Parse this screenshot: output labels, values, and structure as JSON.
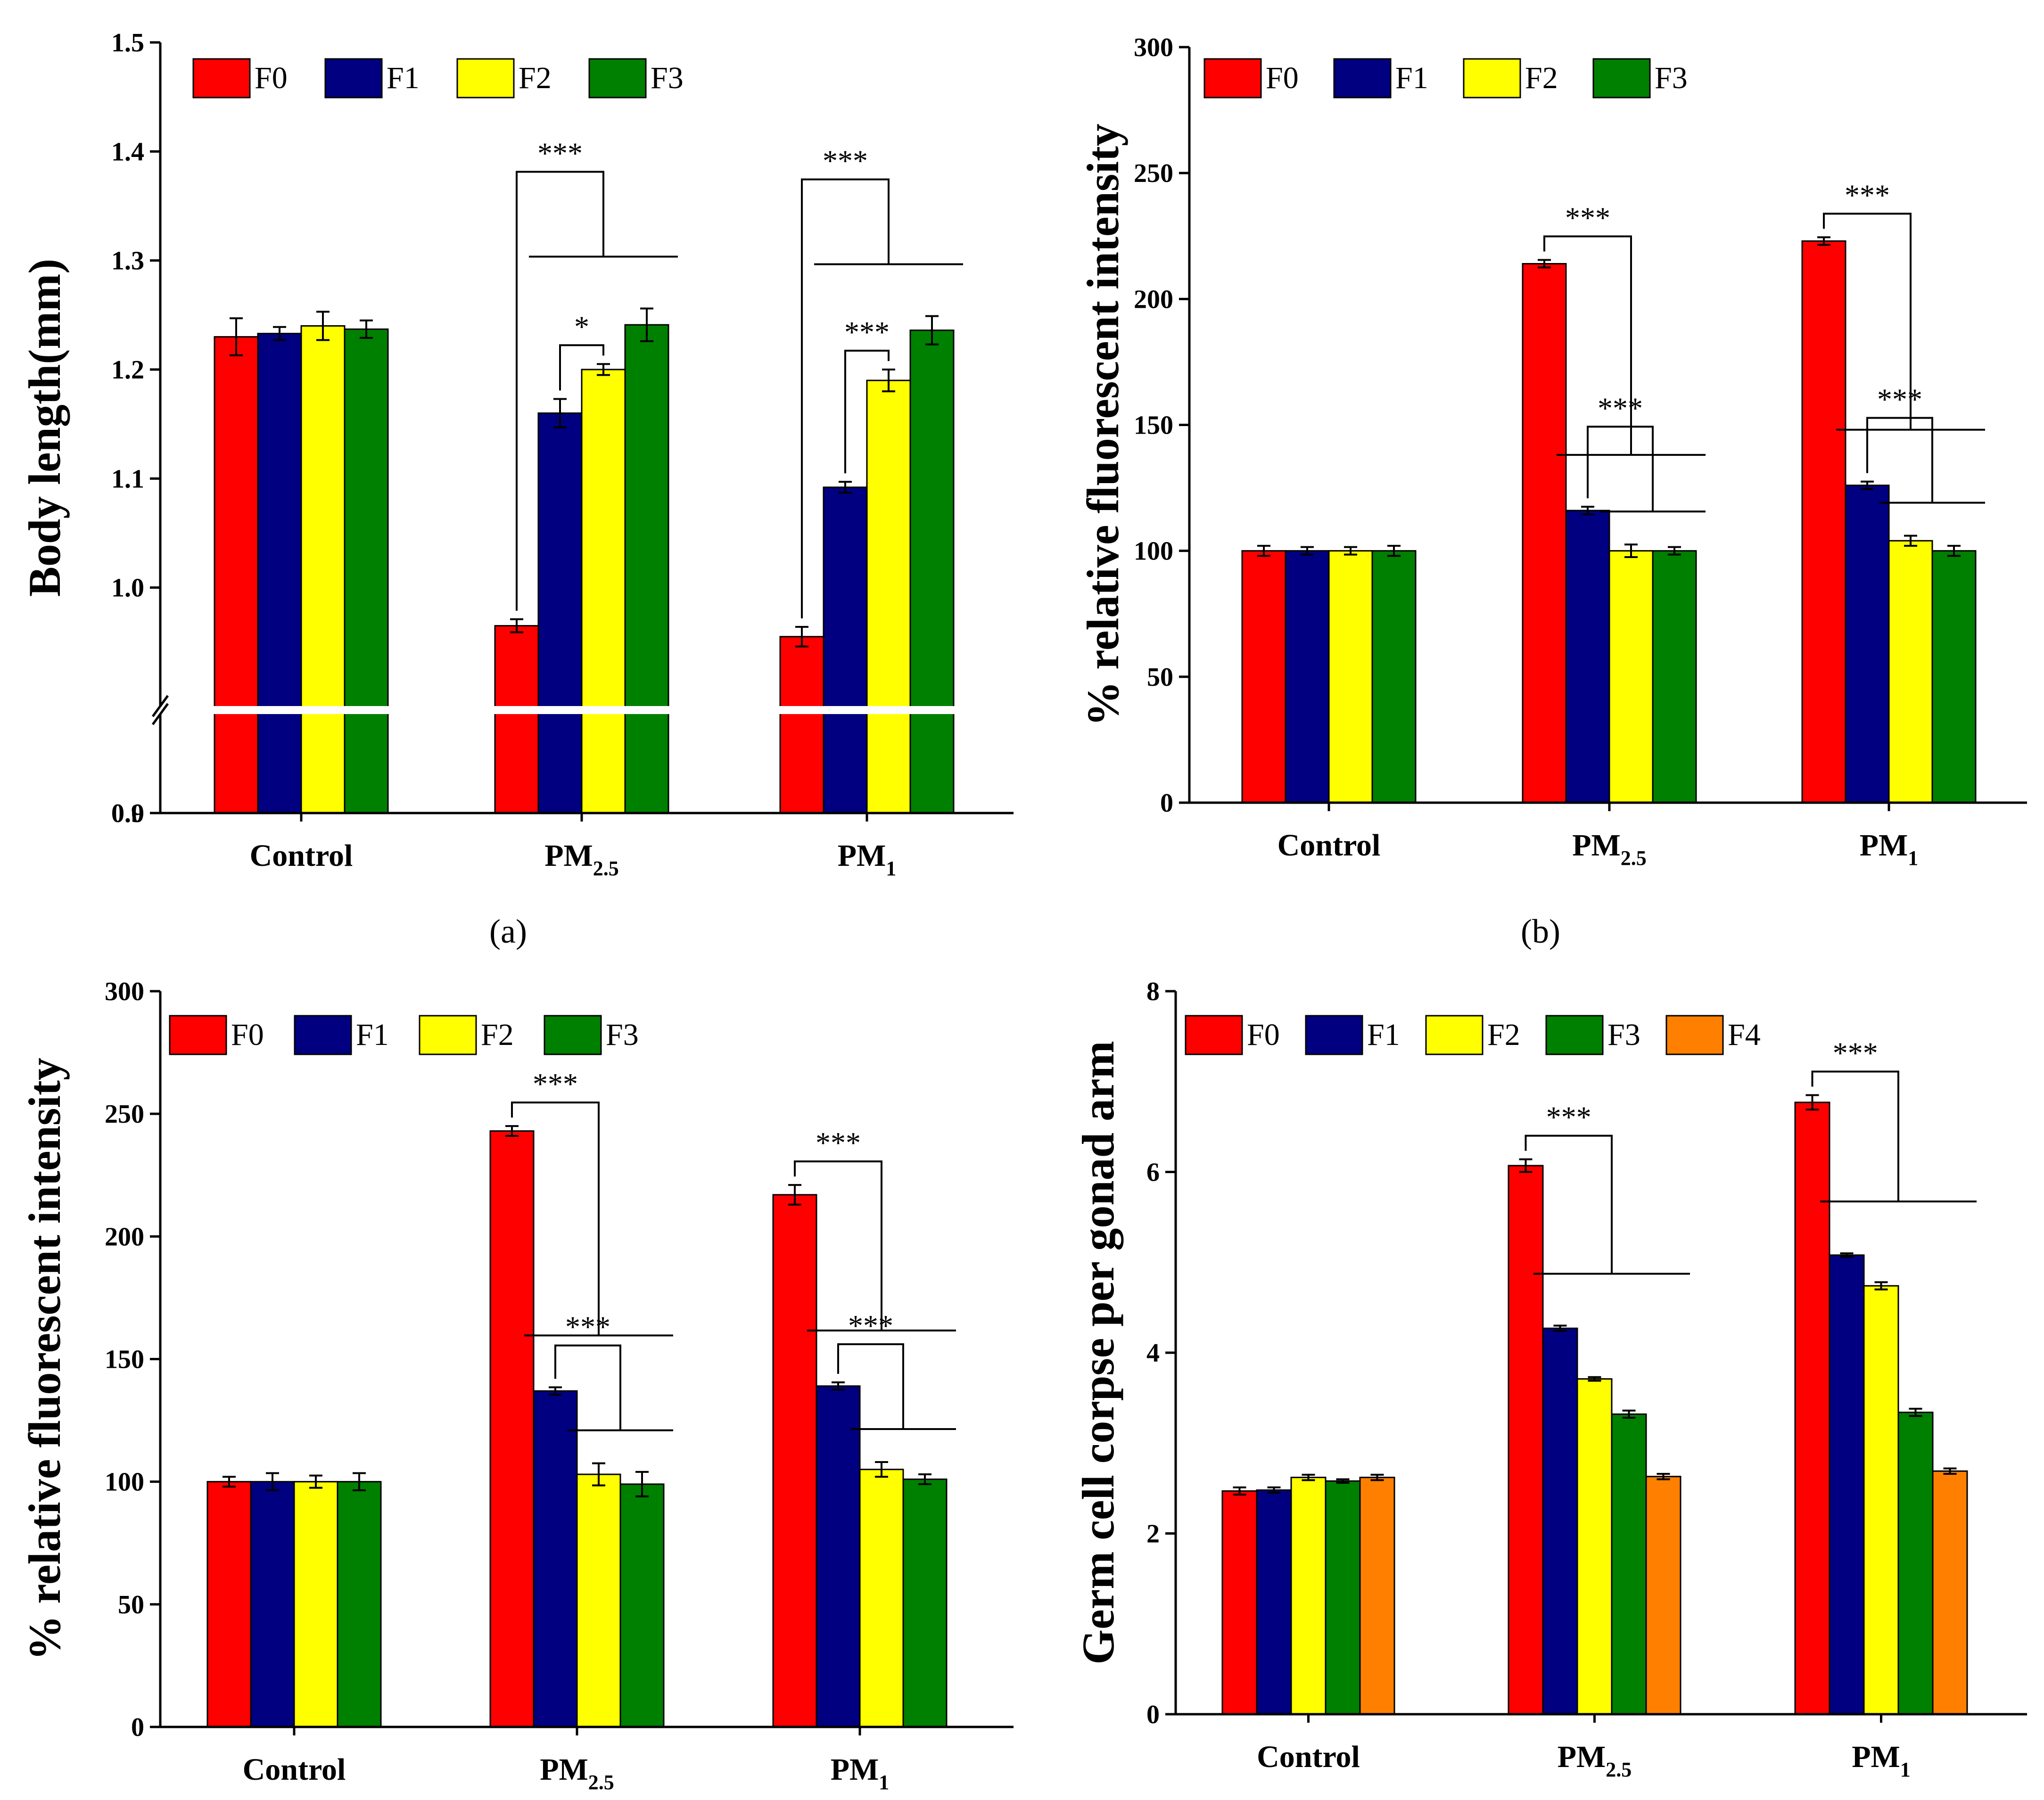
{
  "figure": {
    "panel_labels": [
      "(a)",
      "(b)"
    ]
  },
  "colors": {
    "F0": "#ff0000",
    "F1": "#000080",
    "F2": "#ffff00",
    "F3": "#008000",
    "F4": "#ff8000"
  },
  "chart_data": [
    {
      "id": "a",
      "type": "bar",
      "ylabel": "Body length(mm)",
      "xlabel": "",
      "categories": [
        {
          "base": "Control",
          "sub": ""
        },
        {
          "base": "PM",
          "sub": "2.5"
        },
        {
          "base": "PM",
          "sub": "1"
        }
      ],
      "series": [
        {
          "name": "F0",
          "values": [
            1.23,
            0.965,
            0.955
          ],
          "errors": [
            0.017,
            0.006,
            0.009
          ]
        },
        {
          "name": "F1",
          "values": [
            1.233,
            1.16,
            1.092
          ],
          "errors": [
            0.006,
            0.013,
            0.005
          ]
        },
        {
          "name": "F2",
          "values": [
            1.24,
            1.2,
            1.19
          ],
          "errors": [
            0.013,
            0.005,
            0.01
          ]
        },
        {
          "name": "F3",
          "values": [
            1.237,
            1.241,
            1.236
          ],
          "errors": [
            0.008,
            0.015,
            0.013
          ]
        }
      ],
      "y_axis_break": {
        "lower": [
          0.0,
          0.0
        ],
        "upper": [
          0.9,
          1.5
        ]
      },
      "yticks": [
        0.0,
        0.9,
        1.0,
        1.1,
        1.2,
        1.3,
        1.4,
        1.5
      ],
      "ytick_labels": [
        "0.0",
        "0.9",
        "1.0",
        "1.1",
        "1.2",
        "1.3",
        "1.4",
        "1.5"
      ],
      "significance": [
        {
          "category": 1,
          "from": 0,
          "to": [
            1,
            3
          ],
          "label": "***"
        },
        {
          "category": 1,
          "from": 1,
          "to": [
            2,
            2
          ],
          "label": "*"
        },
        {
          "category": 2,
          "from": 0,
          "to": [
            1,
            3
          ],
          "label": "***"
        },
        {
          "category": 2,
          "from": 1,
          "to": [
            2,
            2
          ],
          "label": "***"
        }
      ]
    },
    {
      "id": "b",
      "type": "bar",
      "ylabel": "% relative fluorescent intensity",
      "xlabel": "",
      "categories": [
        {
          "base": "Control",
          "sub": ""
        },
        {
          "base": "PM",
          "sub": "2.5"
        },
        {
          "base": "PM",
          "sub": "1"
        }
      ],
      "series": [
        {
          "name": "F0",
          "values": [
            100,
            214,
            223
          ],
          "errors": [
            2,
            1.5,
            1.5
          ]
        },
        {
          "name": "F1",
          "values": [
            100,
            116,
            126
          ],
          "errors": [
            1.5,
            1.5,
            1.5
          ]
        },
        {
          "name": "F2",
          "values": [
            100,
            100,
            104
          ],
          "errors": [
            1.5,
            2.5,
            2
          ]
        },
        {
          "name": "F3",
          "values": [
            100,
            100,
            100
          ],
          "errors": [
            2,
            1.5,
            2
          ]
        }
      ],
      "ylim": [
        0,
        300
      ],
      "yticks": [
        0,
        50,
        100,
        150,
        200,
        250,
        300
      ],
      "ytick_labels": [
        "0",
        "50",
        "100",
        "150",
        "200",
        "250",
        "300"
      ],
      "significance": [
        {
          "category": 1,
          "from": 0,
          "to": [
            1,
            3
          ],
          "label": "***"
        },
        {
          "category": 1,
          "from": 1,
          "to": [
            2,
            3
          ],
          "label": "***"
        },
        {
          "category": 2,
          "from": 0,
          "to": [
            1,
            3
          ],
          "label": "***"
        },
        {
          "category": 2,
          "from": 1,
          "to": [
            2,
            3
          ],
          "label": "***"
        }
      ]
    },
    {
      "id": "c",
      "type": "bar",
      "ylabel": "% relative fluorescent intensity",
      "xlabel": "",
      "categories": [
        {
          "base": "Control",
          "sub": ""
        },
        {
          "base": "PM",
          "sub": "2.5"
        },
        {
          "base": "PM",
          "sub": "1"
        }
      ],
      "series": [
        {
          "name": "F0",
          "values": [
            100,
            243,
            217
          ],
          "errors": [
            2,
            2,
            4
          ]
        },
        {
          "name": "F1",
          "values": [
            100,
            137,
            139
          ],
          "errors": [
            3.5,
            1.5,
            1.5
          ]
        },
        {
          "name": "F2",
          "values": [
            100,
            103,
            105
          ],
          "errors": [
            2.5,
            4.5,
            3
          ]
        },
        {
          "name": "F3",
          "values": [
            100,
            99,
            101
          ],
          "errors": [
            3.5,
            5,
            2
          ]
        }
      ],
      "ylim": [
        0,
        300
      ],
      "yticks": [
        0,
        50,
        100,
        150,
        200,
        250,
        300
      ],
      "ytick_labels": [
        "0",
        "50",
        "100",
        "150",
        "200",
        "250",
        "300"
      ],
      "significance": [
        {
          "category": 1,
          "from": 0,
          "to": [
            1,
            3
          ],
          "label": "***"
        },
        {
          "category": 1,
          "from": 1,
          "to": [
            2,
            3
          ],
          "label": "***"
        },
        {
          "category": 2,
          "from": 0,
          "to": [
            1,
            3
          ],
          "label": "***"
        },
        {
          "category": 2,
          "from": 1,
          "to": [
            2,
            3
          ],
          "label": "***"
        }
      ]
    },
    {
      "id": "d",
      "type": "bar",
      "ylabel": "Germ cell corpse per gonad arm",
      "xlabel": "",
      "categories": [
        {
          "base": "Control",
          "sub": ""
        },
        {
          "base": "PM",
          "sub": "2.5"
        },
        {
          "base": "PM",
          "sub": "1"
        }
      ],
      "series": [
        {
          "name": "F0",
          "values": [
            2.47,
            6.07,
            6.77
          ],
          "errors": [
            0.04,
            0.07,
            0.08
          ]
        },
        {
          "name": "F1",
          "values": [
            2.48,
            4.27,
            5.08
          ],
          "errors": [
            0.03,
            0.03,
            0.02
          ]
        },
        {
          "name": "F2",
          "values": [
            2.62,
            3.71,
            4.74
          ],
          "errors": [
            0.03,
            0.02,
            0.04
          ]
        },
        {
          "name": "F3",
          "values": [
            2.58,
            3.32,
            3.34
          ],
          "errors": [
            0.02,
            0.04,
            0.04
          ]
        },
        {
          "name": "F4",
          "values": [
            2.62,
            2.63,
            2.69
          ],
          "errors": [
            0.03,
            0.03,
            0.03
          ]
        }
      ],
      "ylim": [
        0,
        8
      ],
      "yticks": [
        0,
        2,
        4,
        6,
        8
      ],
      "ytick_labels": [
        "0",
        "2",
        "4",
        "6",
        "8"
      ],
      "significance": [
        {
          "category": 1,
          "from": 0,
          "to": [
            1,
            4
          ],
          "label": "***"
        },
        {
          "category": 2,
          "from": 0,
          "to": [
            1,
            4
          ],
          "label": "***"
        }
      ]
    }
  ]
}
